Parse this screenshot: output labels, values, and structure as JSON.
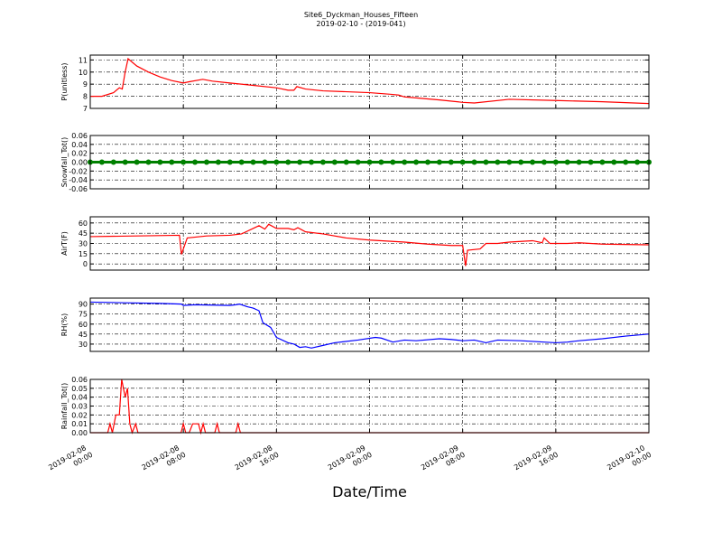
{
  "chart_data": [
    {
      "type": "line",
      "title": "Site6_Dyckman_Houses_Fifteen",
      "subtitle": "2019-02-10 - (2019-041)",
      "ylabel": "P(unitless)",
      "color": "#ff0000",
      "grid": true,
      "xlim": [
        "2019-02-08 00:00",
        "2019-02-10 00:00"
      ],
      "xticks": [
        "2019-02-08 00:00",
        "2019-02-08 08:00",
        "2019-02-08 16:00",
        "2019-02-09 00:00",
        "2019-02-09 08:00",
        "2019-02-09 16:00",
        "2019-02-10 00:00"
      ],
      "ylim": [
        7,
        11.4
      ],
      "yticks": [
        7,
        8,
        9,
        10,
        11
      ],
      "x": [
        "2019-02-08 00:00",
        "2019-02-08 01:00",
        "2019-02-08 02:00",
        "2019-02-08 02:30",
        "2019-02-08 02:45",
        "2019-02-08 03:00",
        "2019-02-08 03:15",
        "2019-02-08 04:00",
        "2019-02-08 05:00",
        "2019-02-08 06:00",
        "2019-02-08 07:00",
        "2019-02-08 08:00",
        "2019-02-08 08:30",
        "2019-02-08 09:40",
        "2019-02-08 10:30",
        "2019-02-08 12:00",
        "2019-02-08 14:00",
        "2019-02-08 16:00",
        "2019-02-08 17:00",
        "2019-02-08 17:30",
        "2019-02-08 17:45",
        "2019-02-08 18:30",
        "2019-02-08 20:00",
        "2019-02-09 00:00",
        "2019-02-09 02:00",
        "2019-02-09 02:30",
        "2019-02-09 03:00",
        "2019-02-09 06:00",
        "2019-02-09 08:00",
        "2019-02-09 09:00",
        "2019-02-09 12:00",
        "2019-02-09 16:00",
        "2019-02-09 20:00",
        "2019-02-10 00:00"
      ],
      "values": [
        8.0,
        8.0,
        8.3,
        8.7,
        8.6,
        10.0,
        11.1,
        10.5,
        10.0,
        9.6,
        9.3,
        9.1,
        9.2,
        9.4,
        9.25,
        9.1,
        8.9,
        8.7,
        8.5,
        8.5,
        8.8,
        8.6,
        8.45,
        8.3,
        8.15,
        8.1,
        7.95,
        7.7,
        7.5,
        7.45,
        7.75,
        7.65,
        7.55,
        7.4
      ]
    },
    {
      "type": "line",
      "ylabel": "Snowfall_Tot()",
      "color": "#008000",
      "marker": true,
      "grid": true,
      "xlim": [
        "2019-02-08 00:00",
        "2019-02-10 00:00"
      ],
      "xticks": [
        "2019-02-08 00:00",
        "2019-02-08 08:00",
        "2019-02-08 16:00",
        "2019-02-09 00:00",
        "2019-02-09 08:00",
        "2019-02-09 16:00",
        "2019-02-10 00:00"
      ],
      "ylim": [
        -0.06,
        0.06
      ],
      "yticks": [
        {
          "value": -0.06,
          "label": "-0.06"
        },
        {
          "value": -0.04,
          "label": "-0.04"
        },
        {
          "value": -0.02,
          "label": "-0.02"
        },
        {
          "value": 0,
          "label": "0.00"
        },
        {
          "value": 0.02,
          "label": "0.02"
        },
        {
          "value": 0.04,
          "label": "0.04"
        },
        {
          "value": 0.06,
          "label": "0.06"
        }
      ],
      "x": [
        "2019-02-08 00:00",
        "2019-02-08 01:00",
        "2019-02-08 02:00",
        "2019-02-08 03:00",
        "2019-02-08 04:00",
        "2019-02-08 05:00",
        "2019-02-08 06:00",
        "2019-02-08 07:00",
        "2019-02-08 08:00",
        "2019-02-08 09:00",
        "2019-02-08 10:00",
        "2019-02-08 11:00",
        "2019-02-08 12:00",
        "2019-02-08 13:00",
        "2019-02-08 14:00",
        "2019-02-08 15:00",
        "2019-02-08 16:00",
        "2019-02-08 17:00",
        "2019-02-08 18:00",
        "2019-02-08 19:00",
        "2019-02-08 20:00",
        "2019-02-08 21:00",
        "2019-02-08 22:00",
        "2019-02-08 23:00",
        "2019-02-09 00:00",
        "2019-02-09 01:00",
        "2019-02-09 02:00",
        "2019-02-09 03:00",
        "2019-02-09 04:00",
        "2019-02-09 05:00",
        "2019-02-09 06:00",
        "2019-02-09 07:00",
        "2019-02-09 08:00",
        "2019-02-09 09:00",
        "2019-02-09 10:00",
        "2019-02-09 11:00",
        "2019-02-09 12:00",
        "2019-02-09 13:00",
        "2019-02-09 14:00",
        "2019-02-09 15:00",
        "2019-02-09 16:00",
        "2019-02-09 17:00",
        "2019-02-09 18:00",
        "2019-02-09 19:00",
        "2019-02-09 20:00",
        "2019-02-09 21:00",
        "2019-02-09 22:00",
        "2019-02-09 23:00",
        "2019-02-10 00:00"
      ],
      "values": [
        0,
        0,
        0,
        0,
        0,
        0,
        0,
        0,
        0,
        0,
        0,
        0,
        0,
        0,
        0,
        0,
        0,
        0,
        0,
        0,
        0,
        0,
        0,
        0,
        0,
        0,
        0,
        0,
        0,
        0,
        0,
        0,
        0,
        0,
        0,
        0,
        0,
        0,
        0,
        0,
        0,
        0,
        0,
        0,
        0,
        0,
        0,
        0,
        0
      ]
    },
    {
      "type": "line",
      "ylabel": "AirT(F)",
      "color": "#ff0000",
      "grid": true,
      "xlim": [
        "2019-02-08 00:00",
        "2019-02-10 00:00"
      ],
      "xticks": [
        "2019-02-08 00:00",
        "2019-02-08 08:00",
        "2019-02-08 16:00",
        "2019-02-09 00:00",
        "2019-02-09 08:00",
        "2019-02-09 16:00",
        "2019-02-10 00:00"
      ],
      "ylim": [
        -9,
        69
      ],
      "yticks": [
        0,
        15,
        30,
        45,
        60
      ],
      "x": [
        "2019-02-08 00:00",
        "2019-02-08 04:00",
        "2019-02-08 07:40",
        "2019-02-08 07:50",
        "2019-02-08 08:20",
        "2019-02-08 10:00",
        "2019-02-08 12:00",
        "2019-02-08 13:00",
        "2019-02-08 13:30",
        "2019-02-08 14:30",
        "2019-02-08 15:00",
        "2019-02-08 15:20",
        "2019-02-08 16:00",
        "2019-02-08 17:00",
        "2019-02-08 17:30",
        "2019-02-08 17:50",
        "2019-02-08 18:30",
        "2019-02-08 20:00",
        "2019-02-08 22:00",
        "2019-02-09 00:00",
        "2019-02-09 03:00",
        "2019-02-09 05:00",
        "2019-02-09 07:00",
        "2019-02-09 08:00",
        "2019-02-09 08:15",
        "2019-02-09 08:25",
        "2019-02-09 09:30",
        "2019-02-09 10:00",
        "2019-02-09 11:00",
        "2019-02-09 12:00",
        "2019-02-09 14:00",
        "2019-02-09 14:50",
        "2019-02-09 15:00",
        "2019-02-09 15:30",
        "2019-02-09 17:00",
        "2019-02-09 18:00",
        "2019-02-09 20:00",
        "2019-02-10 00:00"
      ],
      "values": [
        40,
        41,
        42,
        14,
        38,
        41,
        42,
        44,
        48,
        56,
        51,
        58,
        52,
        52,
        50,
        53,
        47,
        44,
        38,
        35,
        32,
        29,
        27,
        27,
        -3,
        20,
        22,
        30,
        30,
        32,
        34,
        31,
        38,
        30,
        30,
        31,
        29,
        28
      ]
    },
    {
      "type": "line",
      "ylabel": "RH(%)",
      "color": "#0000ff",
      "grid": true,
      "xlim": [
        "2019-02-08 00:00",
        "2019-02-10 00:00"
      ],
      "xticks": [
        "2019-02-08 00:00",
        "2019-02-08 08:00",
        "2019-02-08 16:00",
        "2019-02-09 00:00",
        "2019-02-09 08:00",
        "2019-02-09 16:00",
        "2019-02-10 00:00"
      ],
      "ylim": [
        19,
        99
      ],
      "yticks": [
        30,
        45,
        60,
        75,
        90
      ],
      "x": [
        "2019-02-08 00:00",
        "2019-02-08 03:00",
        "2019-02-08 06:00",
        "2019-02-08 07:50",
        "2019-02-08 08:00",
        "2019-02-08 09:00",
        "2019-02-08 12:00",
        "2019-02-08 12:30",
        "2019-02-08 12:50",
        "2019-02-08 13:30",
        "2019-02-08 14:00",
        "2019-02-08 14:30",
        "2019-02-08 14:50",
        "2019-02-08 15:30",
        "2019-02-08 16:00",
        "2019-02-08 17:00",
        "2019-02-08 17:30",
        "2019-02-08 18:00",
        "2019-02-08 18:30",
        "2019-02-08 19:00",
        "2019-02-08 20:00",
        "2019-02-08 21:00",
        "2019-02-08 23:00",
        "2019-02-09 00:30",
        "2019-02-09 01:00",
        "2019-02-09 02:00",
        "2019-02-09 03:00",
        "2019-02-09 04:00",
        "2019-02-09 06:00",
        "2019-02-09 07:00",
        "2019-02-09 08:00",
        "2019-02-09 09:00",
        "2019-02-09 10:00",
        "2019-02-09 11:00",
        "2019-02-09 13:00",
        "2019-02-09 14:00",
        "2019-02-09 16:00",
        "2019-02-09 17:00",
        "2019-02-09 18:00",
        "2019-02-09 20:00",
        "2019-02-09 22:00",
        "2019-02-10 00:00"
      ],
      "values": [
        93,
        92,
        91,
        90,
        88,
        89,
        88,
        89,
        90,
        86,
        84,
        80,
        62,
        55,
        40,
        32,
        30,
        25,
        26,
        24,
        28,
        32,
        36,
        40,
        39,
        33,
        36,
        35,
        38,
        37,
        35,
        36,
        32,
        36,
        35,
        34,
        32,
        33,
        35,
        38,
        42,
        45
      ]
    },
    {
      "type": "line",
      "ylabel": "Rainfall_Tot()",
      "xlabel": "Date/Time",
      "color": "#ff0000",
      "grid": true,
      "xlim": [
        "2019-02-08 00:00",
        "2019-02-10 00:00"
      ],
      "xticks": [
        "2019-02-08 00:00",
        "2019-02-08 08:00",
        "2019-02-08 16:00",
        "2019-02-09 00:00",
        "2019-02-09 08:00",
        "2019-02-09 16:00",
        "2019-02-10 00:00"
      ],
      "ylim": [
        0,
        0.06
      ],
      "yticks": [
        {
          "value": 0,
          "label": "0.00"
        },
        0.01,
        0.02,
        0.03,
        0.04,
        0.05,
        0.06
      ],
      "x": [
        "2019-02-08 00:00",
        "2019-02-08 01:30",
        "2019-02-08 01:42",
        "2019-02-08 01:54",
        "2019-02-08 02:12",
        "2019-02-08 02:30",
        "2019-02-08 02:42",
        "2019-02-08 03:00",
        "2019-02-08 03:12",
        "2019-02-08 03:24",
        "2019-02-08 03:36",
        "2019-02-08 03:54",
        "2019-02-08 04:06",
        "2019-02-08 07:48",
        "2019-02-08 08:00",
        "2019-02-08 08:12",
        "2019-02-08 08:30",
        "2019-02-08 08:48",
        "2019-02-08 09:18",
        "2019-02-08 09:30",
        "2019-02-08 09:42",
        "2019-02-08 09:54",
        "2019-02-08 10:42",
        "2019-02-08 10:54",
        "2019-02-08 11:06",
        "2019-02-08 12:30",
        "2019-02-08 12:42",
        "2019-02-08 12:54",
        "2019-02-10 00:00"
      ],
      "values": [
        0,
        0,
        0.01,
        0,
        0.02,
        0.02,
        0.06,
        0.04,
        0.05,
        0.01,
        0,
        0.01,
        0,
        0,
        0.01,
        0,
        0,
        0.01,
        0.01,
        0,
        0.01,
        0,
        0,
        0.01,
        0,
        0,
        0.01,
        0,
        0
      ]
    }
  ]
}
